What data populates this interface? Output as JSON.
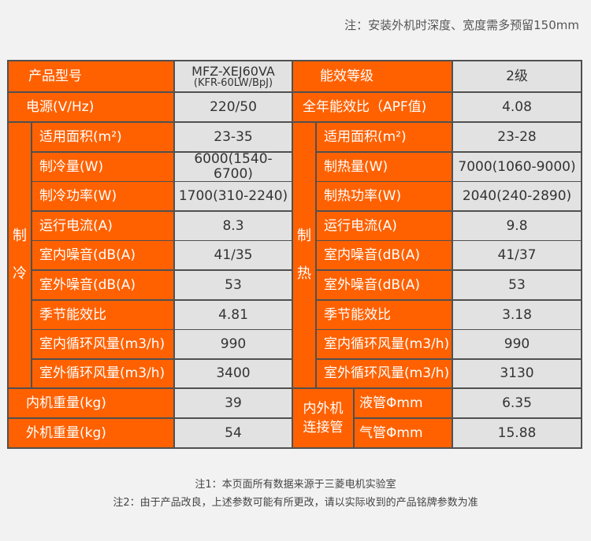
{
  "header_note": "注：安装外机时深度、宽度需多预留150mm",
  "top": {
    "model_label": "产品型号",
    "model_main": "MFZ-XEJ60VA",
    "model_sub": "(KFR-60LW/BpJ)",
    "energy_label": "能效等级",
    "energy_value": "2级",
    "power_label": "电源(V/Hz)",
    "power_value": "220/50",
    "apf_label": "全年能效比（APF值)",
    "apf_value": "4.08"
  },
  "cooling": {
    "title": [
      "制",
      "冷"
    ],
    "rows": [
      {
        "label": "适用面积(m²)",
        "value": "23-35"
      },
      {
        "label": "制冷量(W)",
        "value": "6000(1540-6700)"
      },
      {
        "label": "制冷功率(W)",
        "value": "1700(310-2240)"
      },
      {
        "label": "运行电流(A)",
        "value": "8.3"
      },
      {
        "label": "室内噪音(dB(A)",
        "value": "41/35"
      },
      {
        "label": "室外噪音(dB(A)",
        "value": "53"
      },
      {
        "label": "季节能效比",
        "value": "4.81"
      },
      {
        "label": "室内循环风量(m3/h)",
        "value": "990"
      },
      {
        "label": "室外循环风量(m3/h)",
        "value": "3400"
      }
    ]
  },
  "heating": {
    "title": [
      "制",
      "热"
    ],
    "rows": [
      {
        "label": "适用面积(m²)",
        "value": "23-28"
      },
      {
        "label": "制热量(W)",
        "value": "7000(1060-9000)"
      },
      {
        "label": "制热功率(W)",
        "value": "2040(240-2890)"
      },
      {
        "label": "运行电流(A)",
        "value": "9.8"
      },
      {
        "label": "室内噪音(dB(A)",
        "value": "41/37"
      },
      {
        "label": "室外噪音(dB(A)",
        "value": "53"
      },
      {
        "label": "季节能效比",
        "value": "3.18"
      },
      {
        "label": "室内循环风量(m3/h)",
        "value": "990"
      },
      {
        "label": "室外循环风量(m3/h)",
        "value": "3130"
      }
    ]
  },
  "bottom": {
    "indoor_weight_label": "内机重量(kg)",
    "indoor_weight_value": "39",
    "outdoor_weight_label": "外机重量(kg)",
    "outdoor_weight_value": "54",
    "pipe_title": [
      "内外机",
      "连接管"
    ],
    "liquid_label": "液管Φmm",
    "liquid_value": "6.35",
    "gas_label": "气管Φmm",
    "gas_value": "15.88"
  },
  "footnotes": [
    "注1：本页面所有数据来源于三菱电机实验室",
    "注2：由于产品改良，上述参数可能有所更改，请以实际收到的产品铭牌参数为准"
  ],
  "colors": {
    "label_bg": "#ff6100",
    "value_bg": "#e2e2e2",
    "grid": "#505050",
    "page_bg": "#f2f2f2"
  }
}
